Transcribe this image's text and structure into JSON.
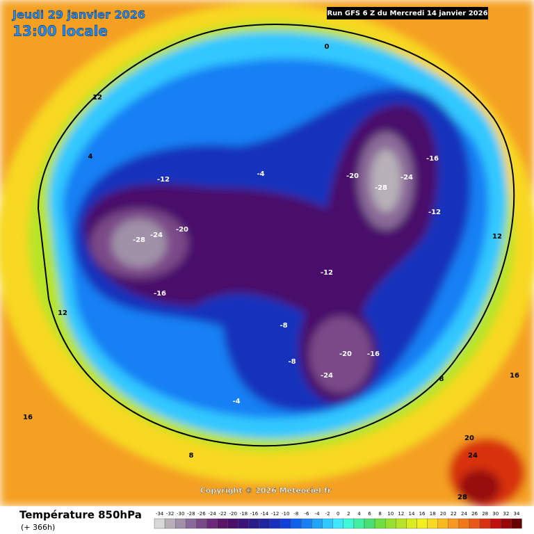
{
  "header": {
    "date": "Jeudi 29 janvier 2026",
    "time": "13:00 locale",
    "run": "Run GFS 6 Z du Mercredi 14 janvier 2026"
  },
  "copyright": "Copyright © 2026 Meteociel.fr",
  "legend": {
    "title": "Température 850hPa",
    "subtitle": "(+ 366h)",
    "ticks": [
      -34,
      -32,
      -30,
      -28,
      -26,
      -24,
      -22,
      -20,
      -18,
      -16,
      -14,
      -12,
      -10,
      -8,
      -6,
      -4,
      -2,
      0,
      2,
      4,
      6,
      8,
      10,
      12,
      14,
      16,
      18,
      20,
      22,
      24,
      26,
      28,
      30,
      32,
      34
    ],
    "colors": [
      "#d8d8d8",
      "#b8b0b8",
      "#a090a8",
      "#8a6a98",
      "#7a4a88",
      "#6a2a78",
      "#5a1468",
      "#48106a",
      "#381478",
      "#281c88",
      "#1e24a0",
      "#1830bc",
      "#1040d8",
      "#1060ec",
      "#1880f4",
      "#20a4fa",
      "#30c8ff",
      "#40e8ff",
      "#40f8d8",
      "#40f0a0",
      "#48e070",
      "#70e040",
      "#98e030",
      "#b8e428",
      "#d8ec20",
      "#f4f020",
      "#f8d820",
      "#f8b820",
      "#f89820",
      "#f07818",
      "#e85818",
      "#d83010",
      "#c01010",
      "#980808",
      "#680000"
    ]
  },
  "map": {
    "labels": [
      "-28",
      "-24",
      "-20",
      "-16",
      "-12",
      "-28",
      "-24",
      "-20",
      "-16",
      "-12",
      "-24",
      "-20",
      "-16",
      "-12",
      "-8",
      "-4",
      "0",
      "4",
      "8",
      "12",
      "16",
      "20",
      "24",
      "28",
      "12",
      "16",
      "8",
      "12",
      "-8",
      "-4"
    ]
  }
}
